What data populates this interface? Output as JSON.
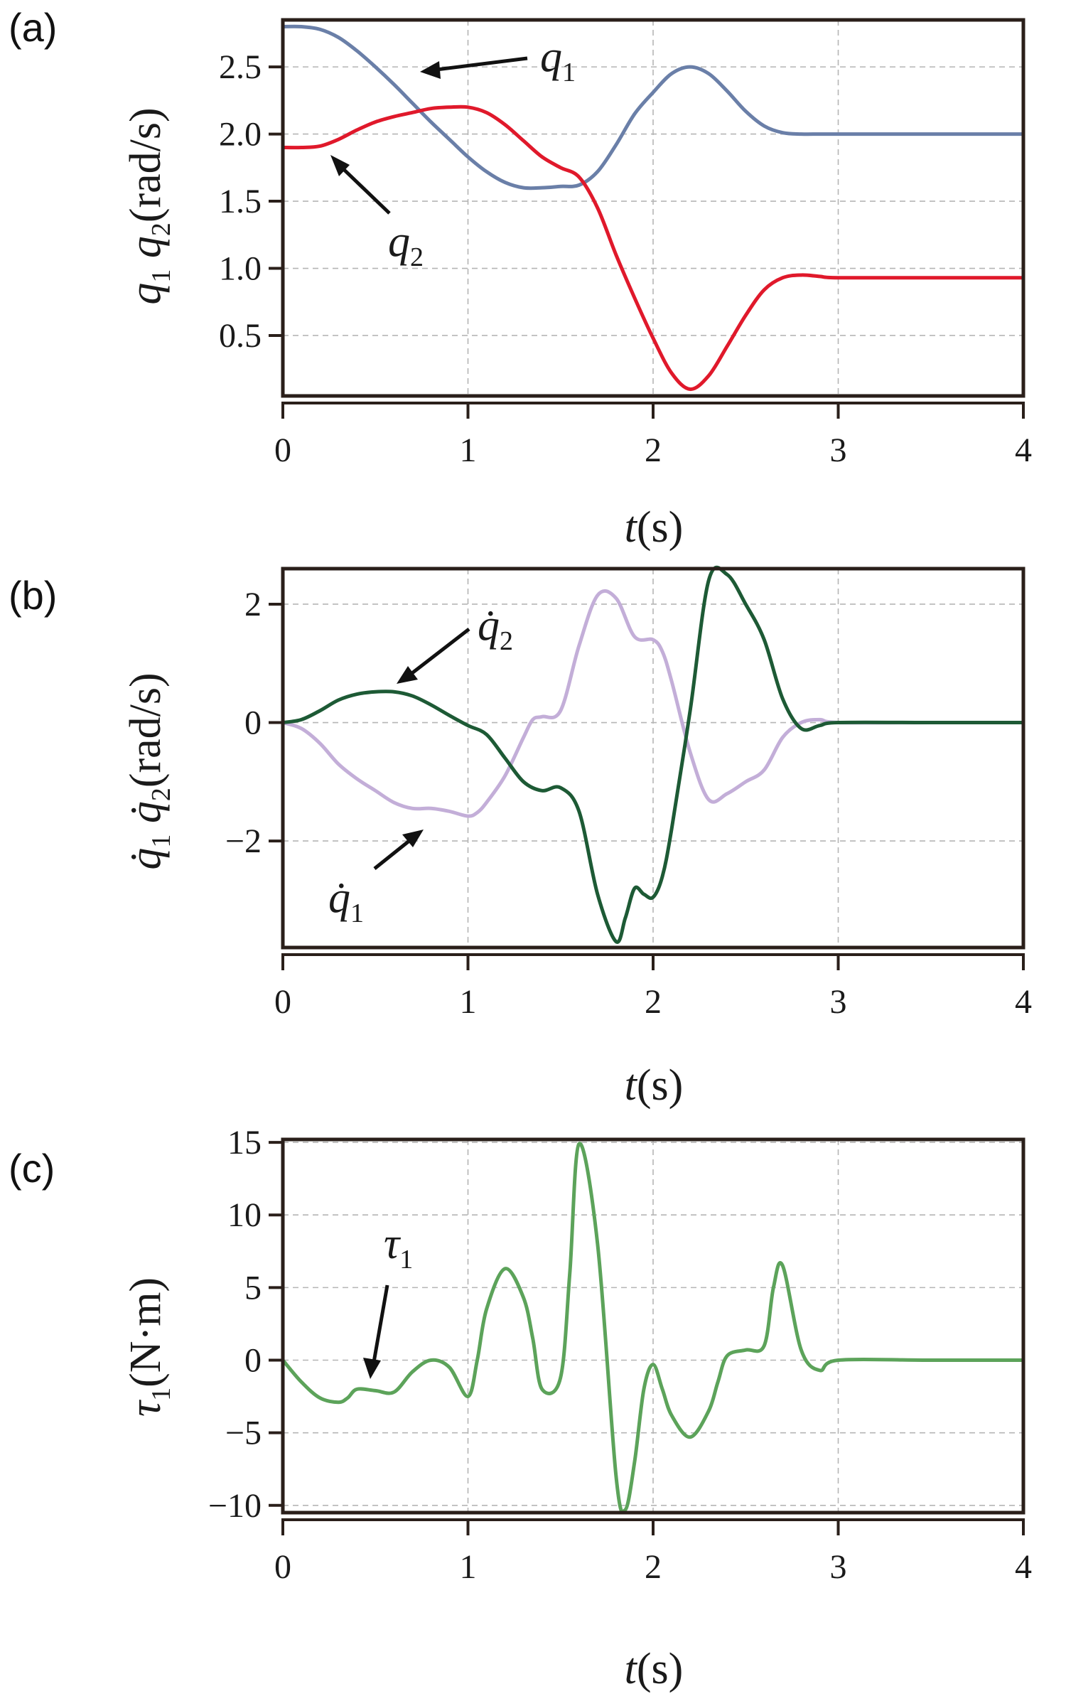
{
  "chart_data": [
    {
      "type": "line",
      "panel_label": "(a)",
      "title": "",
      "xlabel": "t(s)",
      "ylabel": "q1 q2(rad/s)",
      "xlim": [
        0,
        4
      ],
      "ylim": [
        0.05,
        2.85
      ],
      "xticks": [
        0,
        1,
        2,
        3,
        4
      ],
      "yticks": [
        0.5,
        1.0,
        1.5,
        2.0,
        2.5
      ],
      "ytick_labels": [
        "0.5",
        "1.0",
        "1.5",
        "2.0",
        "2.5"
      ],
      "grid": true,
      "series": [
        {
          "name": "q1",
          "color": "#6a7fa8",
          "x": [
            0,
            0.1,
            0.2,
            0.3,
            0.4,
            0.5,
            0.6,
            0.7,
            0.8,
            0.9,
            1.0,
            1.1,
            1.2,
            1.3,
            1.4,
            1.5,
            1.6,
            1.7,
            1.8,
            1.9,
            2.0,
            2.1,
            2.2,
            2.3,
            2.4,
            2.5,
            2.6,
            2.7,
            2.8,
            2.9,
            3.0,
            3.5,
            4.0
          ],
          "y": [
            2.8,
            2.8,
            2.78,
            2.72,
            2.62,
            2.5,
            2.37,
            2.23,
            2.09,
            1.96,
            1.83,
            1.72,
            1.64,
            1.6,
            1.6,
            1.61,
            1.62,
            1.72,
            1.92,
            2.15,
            2.31,
            2.45,
            2.5,
            2.45,
            2.32,
            2.17,
            2.06,
            2.01,
            2.0,
            2.0,
            2.0,
            2.0,
            2.0
          ]
        },
        {
          "name": "q2",
          "color": "#e0192b",
          "x": [
            0,
            0.1,
            0.2,
            0.3,
            0.4,
            0.5,
            0.6,
            0.7,
            0.8,
            0.9,
            1.0,
            1.1,
            1.2,
            1.3,
            1.4,
            1.5,
            1.6,
            1.7,
            1.8,
            1.9,
            2.0,
            2.1,
            2.2,
            2.3,
            2.4,
            2.5,
            2.6,
            2.7,
            2.8,
            2.9,
            3.0,
            3.5,
            4.0
          ],
          "y": [
            1.9,
            1.9,
            1.91,
            1.96,
            2.03,
            2.09,
            2.13,
            2.16,
            2.19,
            2.2,
            2.2,
            2.16,
            2.07,
            1.95,
            1.83,
            1.75,
            1.68,
            1.45,
            1.1,
            0.78,
            0.48,
            0.22,
            0.1,
            0.2,
            0.42,
            0.65,
            0.84,
            0.93,
            0.95,
            0.94,
            0.93,
            0.93,
            0.93
          ]
        }
      ],
      "annotations": [
        {
          "text": "q",
          "sub": "1",
          "target": "q1"
        },
        {
          "text": "q",
          "sub": "2",
          "target": "q2"
        }
      ]
    },
    {
      "type": "line",
      "panel_label": "(b)",
      "title": "",
      "xlabel": "t(s)",
      "ylabel": "q̇1 q̇2(rad/s)",
      "xlim": [
        0,
        4
      ],
      "ylim": [
        -3.8,
        2.6
      ],
      "xticks": [
        0,
        1,
        2,
        3,
        4
      ],
      "yticks": [
        -2,
        0,
        2
      ],
      "ytick_labels": [
        "−2",
        "0",
        "2"
      ],
      "grid": true,
      "series": [
        {
          "name": "q̇1",
          "color": "#c3aed8",
          "x": [
            0,
            0.1,
            0.2,
            0.3,
            0.4,
            0.5,
            0.6,
            0.7,
            0.8,
            0.9,
            1.0,
            1.05,
            1.1,
            1.2,
            1.3,
            1.35,
            1.4,
            1.5,
            1.6,
            1.7,
            1.8,
            1.9,
            2.0,
            2.05,
            2.1,
            2.2,
            2.3,
            2.4,
            2.5,
            2.6,
            2.7,
            2.8,
            2.9,
            3.0,
            3.5,
            4.0
          ],
          "y": [
            0,
            -0.1,
            -0.35,
            -0.7,
            -0.95,
            -1.15,
            -1.35,
            -1.45,
            -1.45,
            -1.5,
            -1.58,
            -1.52,
            -1.35,
            -0.9,
            -0.25,
            0.05,
            0.1,
            0.2,
            1.3,
            2.15,
            2.1,
            1.45,
            1.4,
            1.2,
            0.7,
            -0.5,
            -1.3,
            -1.2,
            -1.0,
            -0.8,
            -0.25,
            0.0,
            0.05,
            0.0,
            0.0,
            0.0
          ]
        },
        {
          "name": "q̇2",
          "color": "#1d5a35",
          "x": [
            0,
            0.1,
            0.2,
            0.3,
            0.4,
            0.5,
            0.6,
            0.7,
            0.8,
            0.9,
            1.0,
            1.1,
            1.2,
            1.3,
            1.4,
            1.5,
            1.6,
            1.7,
            1.8,
            1.85,
            1.9,
            1.95,
            2.0,
            2.05,
            2.1,
            2.2,
            2.3,
            2.4,
            2.5,
            2.6,
            2.7,
            2.8,
            2.9,
            3.0,
            3.5,
            4.0
          ],
          "y": [
            0,
            0.05,
            0.2,
            0.38,
            0.48,
            0.52,
            0.52,
            0.45,
            0.3,
            0.12,
            -0.05,
            -0.2,
            -0.6,
            -1.0,
            -1.15,
            -1.1,
            -1.5,
            -2.9,
            -3.7,
            -3.3,
            -2.8,
            -2.9,
            -2.95,
            -2.6,
            -1.8,
            0.2,
            2.4,
            2.5,
            2.0,
            1.4,
            0.4,
            -0.1,
            -0.05,
            0.0,
            0.0,
            0.0
          ]
        }
      ],
      "annotations": [
        {
          "text": "q̇",
          "sub": "2",
          "target": "q̇2"
        },
        {
          "text": "q̇",
          "sub": "1",
          "target": "q̇1"
        }
      ]
    },
    {
      "type": "line",
      "panel_label": "(c)",
      "title": "",
      "xlabel": "t(s)",
      "ylabel": "τ1(N·m)",
      "xlim": [
        0,
        4
      ],
      "ylim": [
        -10.5,
        15.2
      ],
      "xticks": [
        0,
        1,
        2,
        3,
        4
      ],
      "yticks": [
        -10,
        -5,
        0,
        5,
        10,
        15
      ],
      "ytick_labels": [
        "−10",
        "−5",
        "0",
        "5",
        "10",
        "15"
      ],
      "grid": true,
      "series": [
        {
          "name": "τ1",
          "color": "#5ca35a",
          "x": [
            0,
            0.1,
            0.2,
            0.3,
            0.35,
            0.4,
            0.5,
            0.6,
            0.7,
            0.8,
            0.9,
            1.0,
            1.05,
            1.1,
            1.2,
            1.3,
            1.35,
            1.4,
            1.5,
            1.55,
            1.6,
            1.7,
            1.8,
            1.85,
            1.9,
            1.95,
            2.0,
            2.05,
            2.1,
            2.2,
            2.3,
            2.35,
            2.4,
            2.5,
            2.6,
            2.65,
            2.7,
            2.8,
            2.9,
            3.0,
            3.5,
            4.0
          ],
          "y": [
            0,
            -1.5,
            -2.6,
            -2.9,
            -2.6,
            -2.0,
            -2.1,
            -2.2,
            -0.8,
            0.0,
            -0.5,
            -2.5,
            0.0,
            3.5,
            6.3,
            4.3,
            1.5,
            -2.0,
            -1.2,
            6.0,
            14.9,
            8.0,
            -8.0,
            -10.3,
            -7.0,
            -2.0,
            -0.3,
            -2.0,
            -3.8,
            -5.3,
            -3.5,
            -1.5,
            0.3,
            0.7,
            1.0,
            5.0,
            6.5,
            0.7,
            -0.7,
            0.0,
            0.0,
            0.0
          ]
        }
      ],
      "annotations": [
        {
          "text": "τ",
          "sub": "1",
          "target": "τ1"
        }
      ]
    }
  ]
}
